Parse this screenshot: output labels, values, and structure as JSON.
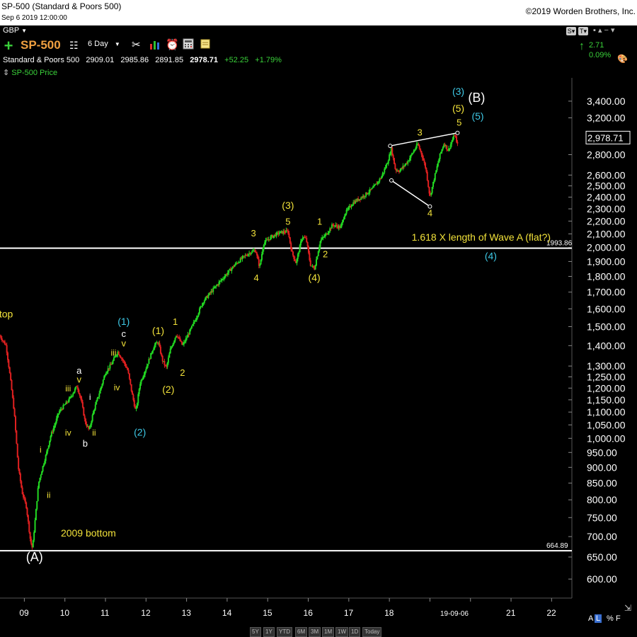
{
  "header": {
    "title": "SP-500 (Standard & Poors 500)",
    "date": "Sep 6 2019 12:00:00",
    "copyright": "©2019 Worden Brothers, Inc."
  },
  "toolbar": {
    "currency": "GBP",
    "symbol": "SP-500",
    "period": "6 Day",
    "change_small": "2.71",
    "change_pct_small": "0.09%"
  },
  "quote": {
    "name": "Standard & Poors 500",
    "open": "2909.01",
    "high": "2985.86",
    "low": "2891.85",
    "close": "2978.71",
    "change": "+52.25",
    "change_pct": "+1.79%",
    "legend": "SP-500 Price"
  },
  "colors": {
    "up": "#22d822",
    "down": "#e02020",
    "wave_yellow": "#f2e23a",
    "wave_cyan": "#3ec9e6",
    "white": "#ffffff"
  },
  "range_buttons": [
    "5Y",
    "1Y",
    "YTD",
    "6M",
    "3M",
    "1M",
    "1W",
    "1D",
    "Today"
  ],
  "footer_controls": [
    "A",
    "L",
    "%",
    "F"
  ],
  "chart_data": {
    "type": "candlestick",
    "scale": "log",
    "ylim": [
      560,
      3700
    ],
    "y_ticks": [
      600,
      650,
      700,
      750,
      800,
      850,
      900,
      950,
      1000,
      1050,
      1100,
      1150,
      1200,
      1250,
      1300,
      1400,
      1500,
      1600,
      1700,
      1800,
      1900,
      2000,
      2100,
      2200,
      2300,
      2400,
      2500,
      2600,
      2800,
      3200,
      3400
    ],
    "y_tick_labels": [
      "600.00",
      "650.00",
      "700.00",
      "750.00",
      "800.00",
      "850.00",
      "900.00",
      "950.00",
      "1,000.00",
      "1,050.00",
      "1,100.00",
      "1,150.00",
      "1,200.00",
      "1,250.00",
      "1,300.00",
      "1,400.00",
      "1,500.00",
      "1,600.00",
      "1,700.00",
      "1,800.00",
      "1,900.00",
      "2,000.00",
      "2,100.00",
      "2,200.00",
      "2,300.00",
      "2,400.00",
      "2,500.00",
      "2,600.00",
      "2,800.00",
      "3,200.00",
      "3,400.00"
    ],
    "xlim": [
      2008.4,
      2022.5
    ],
    "x_ticks": [
      2009,
      2010,
      2011,
      2012,
      2013,
      2014,
      2015,
      2016,
      2017,
      2018,
      2019,
      2020,
      2021,
      2022
    ],
    "x_tick_labels": [
      "09",
      "10",
      "11",
      "12",
      "13",
      "14",
      "15",
      "16",
      "17",
      "18",
      "",
      "",
      "21",
      "22"
    ],
    "last_date_label": "19-09-06",
    "current_price_label": "2,978.71",
    "price_path": [
      [
        2008.4,
        1450
      ],
      [
        2008.55,
        1400
      ],
      [
        2008.65,
        1250
      ],
      [
        2008.75,
        1100
      ],
      [
        2008.85,
        900
      ],
      [
        2008.95,
        820
      ],
      [
        2009.05,
        780
      ],
      [
        2009.15,
        690
      ],
      [
        2009.2,
        670
      ],
      [
        2009.35,
        850
      ],
      [
        2009.45,
        900
      ],
      [
        2009.55,
        950
      ],
      [
        2009.65,
        1010
      ],
      [
        2009.75,
        1050
      ],
      [
        2009.85,
        1100
      ],
      [
        2009.95,
        1120
      ],
      [
        2010.1,
        1150
      ],
      [
        2010.3,
        1210
      ],
      [
        2010.4,
        1150
      ],
      [
        2010.5,
        1060
      ],
      [
        2010.6,
        1030
      ],
      [
        2010.7,
        1100
      ],
      [
        2010.85,
        1180
      ],
      [
        2011.0,
        1270
      ],
      [
        2011.15,
        1310
      ],
      [
        2011.3,
        1370
      ],
      [
        2011.45,
        1320
      ],
      [
        2011.55,
        1280
      ],
      [
        2011.65,
        1180
      ],
      [
        2011.75,
        1100
      ],
      [
        2011.85,
        1220
      ],
      [
        2012.0,
        1290
      ],
      [
        2012.2,
        1400
      ],
      [
        2012.3,
        1420
      ],
      [
        2012.4,
        1330
      ],
      [
        2012.5,
        1290
      ],
      [
        2012.6,
        1380
      ],
      [
        2012.75,
        1460
      ],
      [
        2012.9,
        1400
      ],
      [
        2013.0,
        1440
      ],
      [
        2013.2,
        1530
      ],
      [
        2013.4,
        1640
      ],
      [
        2013.6,
        1700
      ],
      [
        2013.8,
        1760
      ],
      [
        2014.0,
        1820
      ],
      [
        2014.2,
        1880
      ],
      [
        2014.4,
        1930
      ],
      [
        2014.55,
        1960
      ],
      [
        2014.7,
        1980
      ],
      [
        2014.8,
        1860
      ],
      [
        2014.9,
        2030
      ],
      [
        2015.1,
        2080
      ],
      [
        2015.3,
        2110
      ],
      [
        2015.5,
        2120
      ],
      [
        2015.6,
        1960
      ],
      [
        2015.7,
        1890
      ],
      [
        2015.85,
        2080
      ],
      [
        2015.95,
        2060
      ],
      [
        2016.05,
        1880
      ],
      [
        2016.15,
        1850
      ],
      [
        2016.3,
        2050
      ],
      [
        2016.45,
        2100
      ],
      [
        2016.6,
        2170
      ],
      [
        2016.8,
        2150
      ],
      [
        2016.9,
        2260
      ],
      [
        2017.1,
        2350
      ],
      [
        2017.4,
        2420
      ],
      [
        2017.6,
        2480
      ],
      [
        2017.8,
        2580
      ],
      [
        2017.95,
        2720
      ],
      [
        2018.05,
        2860
      ],
      [
        2018.15,
        2650
      ],
      [
        2018.25,
        2640
      ],
      [
        2018.45,
        2730
      ],
      [
        2018.7,
        2910
      ],
      [
        2018.8,
        2800
      ],
      [
        2018.9,
        2660
      ],
      [
        2019.0,
        2400
      ],
      [
        2019.1,
        2560
      ],
      [
        2019.25,
        2800
      ],
      [
        2019.35,
        2920
      ],
      [
        2019.45,
        2840
      ],
      [
        2019.55,
        2950
      ],
      [
        2019.62,
        3020
      ],
      [
        2019.67,
        2880
      ],
      [
        2019.69,
        2978.71
      ]
    ],
    "horizontal_lines": [
      {
        "value": 1993.86,
        "label": "1993.86"
      },
      {
        "value": 664.89,
        "label": "664.89"
      }
    ],
    "annotations": [
      {
        "text": "1.618 X length of Wave A (flat?)",
        "x": 2018.55,
        "y": 2048,
        "color": "yellow"
      },
      {
        "text": "2009 bottom",
        "x": 2009.9,
        "y": 700,
        "color": "yellow"
      },
      {
        "text": "top",
        "x": 2008.38,
        "y": 1550,
        "color": "yellow"
      }
    ],
    "wave_labels": [
      {
        "text": "(A)",
        "x": 2009.25,
        "y": 640,
        "color": "white",
        "size": 18
      },
      {
        "text": "(B)",
        "x": 2020.15,
        "y": 3390,
        "color": "white",
        "size": 18
      },
      {
        "text": "(3)",
        "x": 2019.7,
        "y": 3480,
        "color": "cyan",
        "size": 14
      },
      {
        "text": "(5)",
        "x": 2019.7,
        "y": 3270,
        "color": "yellow",
        "size": 14
      },
      {
        "text": "5",
        "x": 2019.72,
        "y": 3110,
        "color": "yellow",
        "size": 13
      },
      {
        "text": "(5)",
        "x": 2020.18,
        "y": 3180,
        "color": "cyan",
        "size": 14
      },
      {
        "text": "3",
        "x": 2018.75,
        "y": 3000,
        "color": "yellow",
        "size": 13
      },
      {
        "text": "4",
        "x": 2019.0,
        "y": 2240,
        "color": "yellow",
        "size": 13
      },
      {
        "text": "(3)",
        "x": 2015.5,
        "y": 2300,
        "color": "yellow",
        "size": 14
      },
      {
        "text": "5",
        "x": 2015.5,
        "y": 2170,
        "color": "yellow",
        "size": 13
      },
      {
        "text": "3",
        "x": 2014.65,
        "y": 2080,
        "color": "yellow",
        "size": 13
      },
      {
        "text": "4",
        "x": 2014.72,
        "y": 1770,
        "color": "yellow",
        "size": 13
      },
      {
        "text": "1",
        "x": 2016.28,
        "y": 2170,
        "color": "yellow",
        "size": 13
      },
      {
        "text": "2",
        "x": 2016.42,
        "y": 1930,
        "color": "yellow",
        "size": 13
      },
      {
        "text": "(4)",
        "x": 2016.15,
        "y": 1770,
        "color": "yellow",
        "size": 14
      },
      {
        "text": "(4)",
        "x": 2020.5,
        "y": 1915,
        "color": "cyan",
        "size": 14
      },
      {
        "text": "(1)",
        "x": 2011.45,
        "y": 1510,
        "color": "cyan",
        "size": 14
      },
      {
        "text": "c",
        "x": 2011.45,
        "y": 1445,
        "color": "white",
        "size": 13
      },
      {
        "text": "v",
        "x": 2011.45,
        "y": 1395,
        "color": "yellow",
        "size": 13
      },
      {
        "text": "iii",
        "x": 2011.2,
        "y": 1350,
        "color": "yellow",
        "size": 12
      },
      {
        "text": "iv",
        "x": 2011.28,
        "y": 1190,
        "color": "yellow",
        "size": 12
      },
      {
        "text": "(2)",
        "x": 2011.85,
        "y": 1010,
        "color": "cyan",
        "size": 14
      },
      {
        "text": "(1)",
        "x": 2012.3,
        "y": 1460,
        "color": "yellow",
        "size": 14
      },
      {
        "text": "1",
        "x": 2012.72,
        "y": 1510,
        "color": "yellow",
        "size": 13
      },
      {
        "text": "(2)",
        "x": 2012.55,
        "y": 1180,
        "color": "yellow",
        "size": 14
      },
      {
        "text": "2",
        "x": 2012.9,
        "y": 1255,
        "color": "yellow",
        "size": 13
      },
      {
        "text": "a",
        "x": 2010.35,
        "y": 1265,
        "color": "white",
        "size": 13
      },
      {
        "text": "v",
        "x": 2010.35,
        "y": 1225,
        "color": "yellow",
        "size": 13
      },
      {
        "text": "iii",
        "x": 2010.08,
        "y": 1185,
        "color": "yellow",
        "size": 12
      },
      {
        "text": "i",
        "x": 2010.62,
        "y": 1150,
        "color": "white",
        "size": 12
      },
      {
        "text": "iv",
        "x": 2010.08,
        "y": 1010,
        "color": "yellow",
        "size": 12
      },
      {
        "text": "b",
        "x": 2010.5,
        "y": 970,
        "color": "white",
        "size": 13
      },
      {
        "text": "ii",
        "x": 2010.72,
        "y": 1010,
        "color": "yellow",
        "size": 12
      },
      {
        "text": "i",
        "x": 2009.4,
        "y": 950,
        "color": "yellow",
        "size": 12
      },
      {
        "text": "ii",
        "x": 2009.6,
        "y": 805,
        "color": "yellow",
        "size": 12
      }
    ],
    "triangle": [
      [
        2018.02,
        2890
      ],
      [
        2019.68,
        3030
      ],
      [
        2018.05,
        2550
      ],
      [
        2019.0,
        2320
      ]
    ]
  }
}
